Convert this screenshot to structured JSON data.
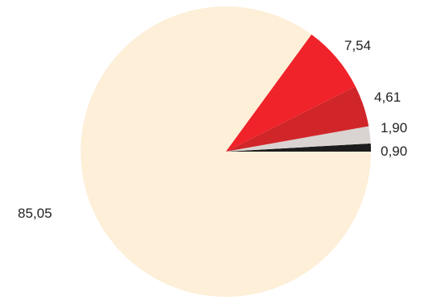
{
  "chart_data": {
    "type": "pie",
    "title": "",
    "start": "3 o'clock",
    "direction": "counterclockwise",
    "legend": "none",
    "slices": [
      {
        "label": "0,90",
        "value": 0.9,
        "color": "#1c1c1c"
      },
      {
        "label": "1,90",
        "value": 1.9,
        "color": "#d9d4d2"
      },
      {
        "label": "4,61",
        "value": 4.61,
        "color": "#d0262a"
      },
      {
        "label": "7,54",
        "value": 7.54,
        "color": "#f0232a"
      },
      {
        "label": "85,05",
        "value": 85.05,
        "color": "#fdefd8"
      }
    ]
  }
}
